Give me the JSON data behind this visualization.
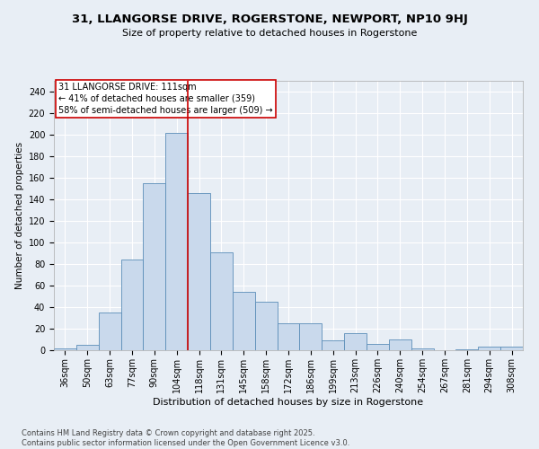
{
  "title": "31, LLANGORSE DRIVE, ROGERSTONE, NEWPORT, NP10 9HJ",
  "subtitle": "Size of property relative to detached houses in Rogerstone",
  "xlabel": "Distribution of detached houses by size in Rogerstone",
  "ylabel": "Number of detached properties",
  "bar_color": "#c9d9ec",
  "bar_edge_color": "#5b8db8",
  "bg_color": "#e8eef5",
  "grid_color": "#ffffff",
  "categories": [
    "36sqm",
    "50sqm",
    "63sqm",
    "77sqm",
    "90sqm",
    "104sqm",
    "118sqm",
    "131sqm",
    "145sqm",
    "158sqm",
    "172sqm",
    "186sqm",
    "199sqm",
    "213sqm",
    "226sqm",
    "240sqm",
    "254sqm",
    "267sqm",
    "281sqm",
    "294sqm",
    "308sqm"
  ],
  "values": [
    2,
    5,
    35,
    84,
    155,
    202,
    146,
    91,
    54,
    45,
    25,
    25,
    9,
    16,
    6,
    10,
    2,
    0,
    1,
    3,
    3
  ],
  "property_line_x": 5.5,
  "property_line_color": "#cc0000",
  "annotation_text": "31 LLANGORSE DRIVE: 111sqm\n← 41% of detached houses are smaller (359)\n58% of semi-detached houses are larger (509) →",
  "annotation_box_color": "#ffffff",
  "annotation_box_edge": "#cc0000",
  "footnote": "Contains HM Land Registry data © Crown copyright and database right 2025.\nContains public sector information licensed under the Open Government Licence v3.0.",
  "ylim": [
    0,
    250
  ],
  "yticks": [
    0,
    20,
    40,
    60,
    80,
    100,
    120,
    140,
    160,
    180,
    200,
    220,
    240
  ],
  "title_fontsize": 9.5,
  "subtitle_fontsize": 8,
  "ylabel_fontsize": 7.5,
  "xlabel_fontsize": 8,
  "tick_fontsize": 7,
  "annotation_fontsize": 7,
  "footnote_fontsize": 6
}
